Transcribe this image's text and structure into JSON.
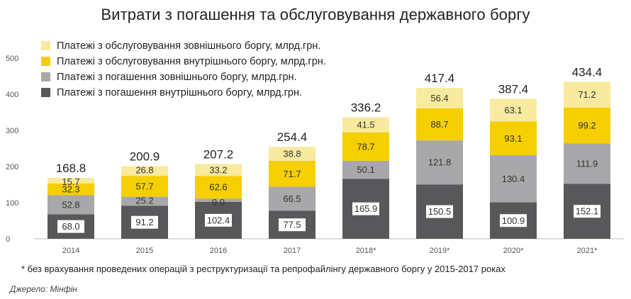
{
  "title": "Витрати з погашення та обслуговування державного боргу",
  "footnote": "* без врахування проведених операцій з реструктуризації та репрофайлінгу державного боргу у 2015-2017 роках",
  "source": "Джерело: Мінфін",
  "colors": {
    "internal_repay": "#58585a",
    "external_repay": "#a8a8aa",
    "internal_service": "#f5cf00",
    "external_service": "#f8ea9e"
  },
  "chart_data": {
    "type": "bar",
    "stacked": true,
    "categories": [
      "2014",
      "2015",
      "2016",
      "2017",
      "2018*",
      "2019*",
      "2020*",
      "2021*"
    ],
    "series": [
      {
        "name": "Платежі з погашення  внутрішнього боргу, млрд.грн.",
        "values": [
          68.0,
          91.2,
          102.4,
          77.5,
          165.9,
          150.5,
          100.9,
          152.1
        ],
        "labels": [
          "68.0",
          "91.2",
          "102.4",
          "77.5",
          "165.9",
          "150.5",
          "100.9",
          "152.1"
        ]
      },
      {
        "name": "Платежі з погашення  зовнішнього боргу, млрд.грн.",
        "values": [
          52.8,
          25.2,
          9.0,
          66.5,
          50.1,
          121.8,
          130.4,
          111.9
        ],
        "labels": [
          "52.8",
          "25.2",
          "9.0",
          "66.5",
          "50.1",
          "121.8",
          "130.4",
          "111.9"
        ]
      },
      {
        "name": "Платежі з обслуговування внутрішнього боргу, млрд.грн.",
        "values": [
          32.3,
          57.7,
          62.6,
          71.7,
          78.7,
          88.7,
          93.1,
          99.2
        ],
        "labels": [
          "32.3",
          "57.7",
          "62.6",
          "71.7",
          "78.7",
          "88.7",
          "93.1",
          "99.2"
        ]
      },
      {
        "name": "Платежі з обслуговування зовнішнього боргу, млрд.грн.",
        "values": [
          15.7,
          26.8,
          33.2,
          38.8,
          41.5,
          56.4,
          63.1,
          71.2
        ],
        "labels": [
          "15.7",
          "26.8",
          "33.2",
          "38.8",
          "41.5",
          "56.4",
          "63.1",
          "71.2"
        ]
      }
    ],
    "totals": [
      "168.8",
      "200.9",
      "207.2",
      "254.4",
      "336.2",
      "417.4",
      "387.4",
      "434.4"
    ],
    "yticks": [
      "0",
      "100",
      "200",
      "300",
      "400",
      "500"
    ],
    "ylim": [
      0,
      500
    ],
    "grid": false,
    "legend_position": "top-left",
    "legend_order": [
      3,
      2,
      1,
      0
    ]
  }
}
